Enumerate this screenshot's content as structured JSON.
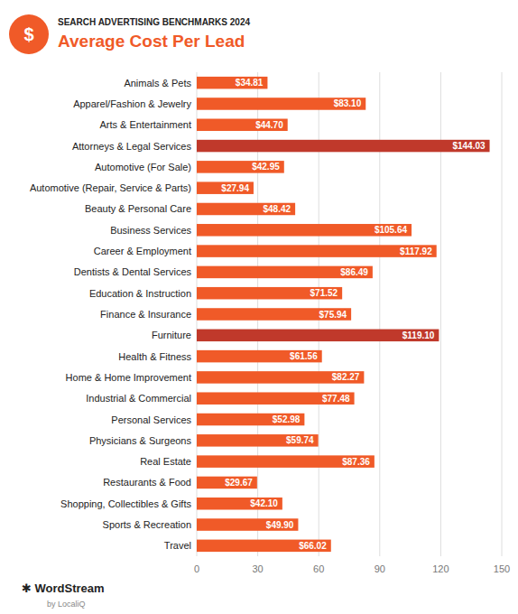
{
  "chart_data": {
    "type": "bar",
    "orientation": "horizontal",
    "subtitle": "SEARCH ADVERTISING BENCHMARKS 2024",
    "title": "Average Cost Per Lead",
    "annotations": [
      "$",
      "✱ WordStream",
      "by LocaliQ"
    ],
    "categories": [
      "Animals & Pets",
      "Apparel/Fashion & Jewelry",
      "Arts & Entertainment",
      "Attorneys & Legal Services",
      "Automotive (For Sale)",
      "Automotive (Repair, Service & Parts)",
      "Beauty & Personal Care",
      "Business Services",
      "Career & Employment",
      "Dentists & Dental Services",
      "Education & Instruction",
      "Finance & Insurance",
      "Furniture",
      "Health & Fitness",
      "Home & Home Improvement",
      "Industrial & Commercial",
      "Personal Services",
      "Physicians & Surgeons",
      "Real Estate",
      "Restaurants & Food",
      "Shopping, Collectibles & Gifts",
      "Sports & Recreation",
      "Travel"
    ],
    "values": [
      34.81,
      83.1,
      44.7,
      144.03,
      42.95,
      27.94,
      48.42,
      105.64,
      117.92,
      86.49,
      71.52,
      75.94,
      119.1,
      61.56,
      82.27,
      77.48,
      52.98,
      59.74,
      87.36,
      29.67,
      42.1,
      49.9,
      66.02
    ],
    "value_labels": [
      "$34.81",
      "$83.10",
      "$44.70",
      "$144.03",
      "$42.95",
      "$27.94",
      "$48.42",
      "$105.64",
      "$117.92",
      "$86.49",
      "$71.52",
      "$75.94",
      "$119.10",
      "$61.56",
      "$82.27",
      "$77.48",
      "$52.98",
      "$59.74",
      "$87.36",
      "$29.67",
      "$42.10",
      "$49.90",
      "$66.02"
    ],
    "data_labels": true,
    "colors": [
      "#F05A28",
      "#F05A28",
      "#F05A28",
      "#C0392B",
      "#F05A28",
      "#F05A28",
      "#F05A28",
      "#F05A28",
      "#F05A28",
      "#F05A28",
      "#F05A28",
      "#F05A28",
      "#C0392B",
      "#F05A28",
      "#F05A28",
      "#F05A28",
      "#F05A28",
      "#F05A28",
      "#F05A28",
      "#F05A28",
      "#F05A28",
      "#F05A28",
      "#F05A28"
    ],
    "xlim": [
      0,
      150
    ],
    "xticks": [
      0,
      30,
      60,
      90,
      120,
      150
    ],
    "grid": true
  }
}
